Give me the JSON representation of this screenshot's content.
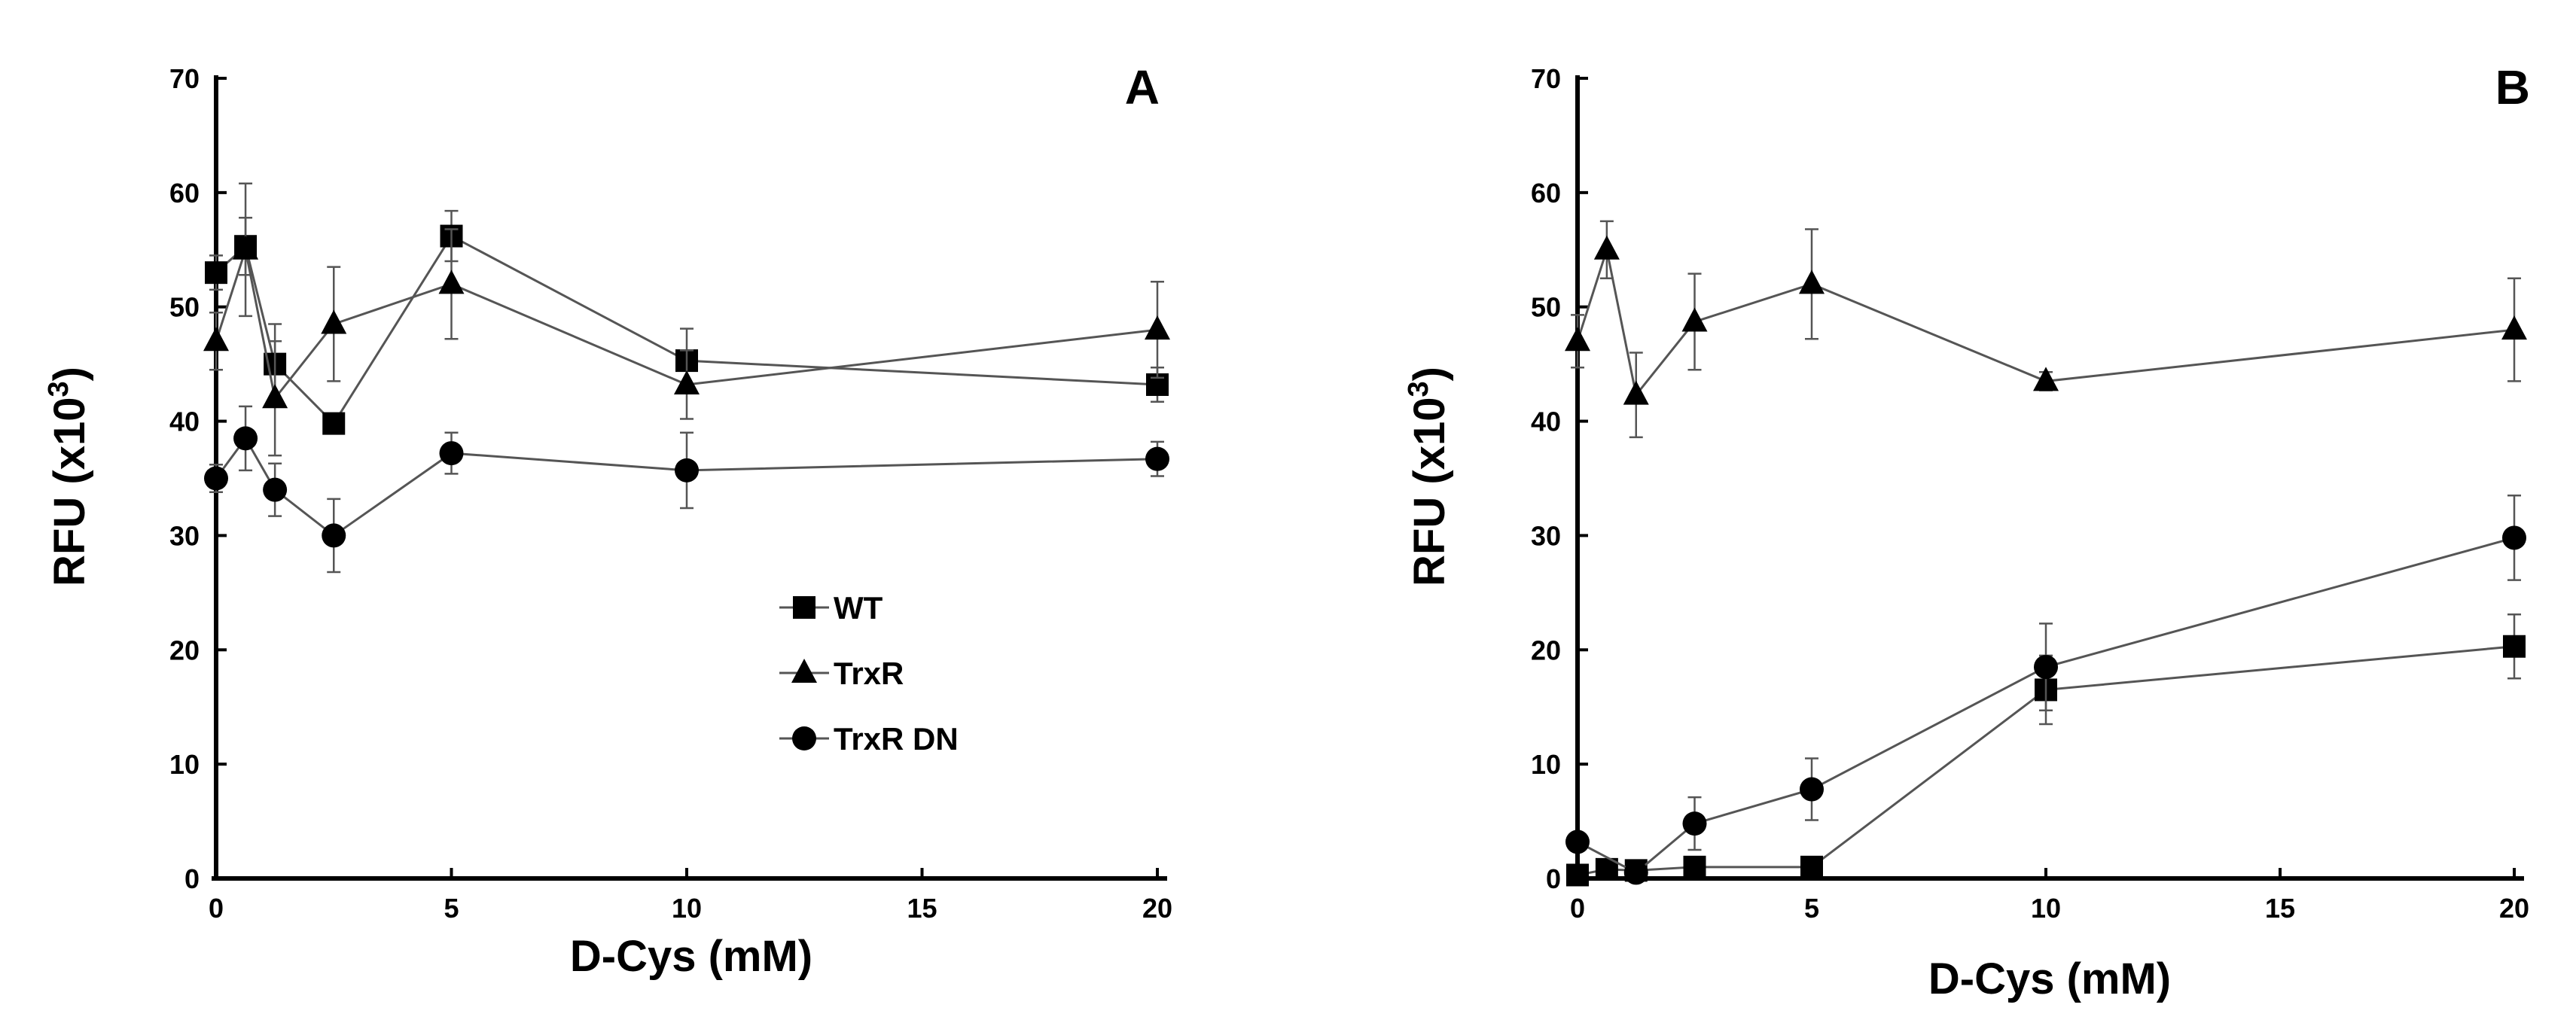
{
  "chart_data": [
    {
      "type": "line",
      "panel_label": "A",
      "title": "",
      "xlabel": "D-Cys (mM)",
      "ylabel": "RFU (x10",
      "ylabel_sup": "3",
      "ylabel_close": ")",
      "xlim": [
        0,
        20
      ],
      "ylim": [
        0,
        70
      ],
      "xticks": [
        "0",
        "5",
        "10",
        "15",
        "20"
      ],
      "yticks": [
        "0",
        "10",
        "20",
        "30",
        "40",
        "50",
        "60",
        "70"
      ],
      "grid": false,
      "legend_position": "center-right",
      "x": [
        0,
        0.625,
        1.25,
        2.5,
        5,
        10,
        20
      ],
      "series": [
        {
          "name": "WT",
          "marker": "square",
          "values": [
            53,
            55.3,
            45,
            39.8,
            56.2,
            45.3,
            43.2
          ],
          "errors": [
            1.5,
            2.5,
            3.5,
            0.8,
            2.2,
            2.8,
            1.5
          ]
        },
        {
          "name": "TrxR",
          "marker": "triangle",
          "values": [
            47,
            55,
            42,
            48.5,
            52,
            43.2,
            48
          ],
          "errors": [
            2.5,
            5.8,
            5,
            5,
            4.8,
            3,
            4.2
          ]
        },
        {
          "name": "TrxR DN",
          "marker": "circle",
          "values": [
            35,
            38.5,
            34,
            30,
            37.2,
            35.7,
            36.7
          ],
          "errors": [
            1.2,
            2.8,
            2.3,
            3.2,
            1.8,
            3.3,
            1.5
          ]
        }
      ]
    },
    {
      "type": "line",
      "panel_label": "B",
      "title": "",
      "xlabel": "D-Cys (mM)",
      "ylabel": "RFU (x10",
      "ylabel_sup": "3",
      "ylabel_close": ")",
      "xlim": [
        0,
        20
      ],
      "ylim": [
        0,
        70
      ],
      "xticks": [
        "0",
        "5",
        "10",
        "15",
        "20"
      ],
      "yticks": [
        "0",
        "10",
        "20",
        "30",
        "40",
        "50",
        "60",
        "70"
      ],
      "grid": false,
      "x": [
        0,
        0.625,
        1.25,
        2.5,
        5,
        10,
        20
      ],
      "series": [
        {
          "name": "WT",
          "marker": "square",
          "values": [
            0.3,
            0.8,
            0.7,
            1.0,
            1.0,
            16.5,
            20.3
          ],
          "errors": [
            0.2,
            0.3,
            0.3,
            0.3,
            0.4,
            3.0,
            2.8
          ]
        },
        {
          "name": "TrxR",
          "marker": "triangle",
          "values": [
            47,
            55,
            42.3,
            48.7,
            52,
            43.5,
            48
          ],
          "errors": [
            2.3,
            2.5,
            3.7,
            4.2,
            4.8,
            0.8,
            4.5
          ]
        },
        {
          "name": "TrxR DN",
          "marker": "circle",
          "values": [
            3.2,
            null,
            0.5,
            4.8,
            7.8,
            18.5,
            29.8
          ],
          "errors": [
            0.5,
            null,
            0.3,
            2.3,
            2.7,
            3.8,
            3.7
          ]
        }
      ]
    }
  ]
}
